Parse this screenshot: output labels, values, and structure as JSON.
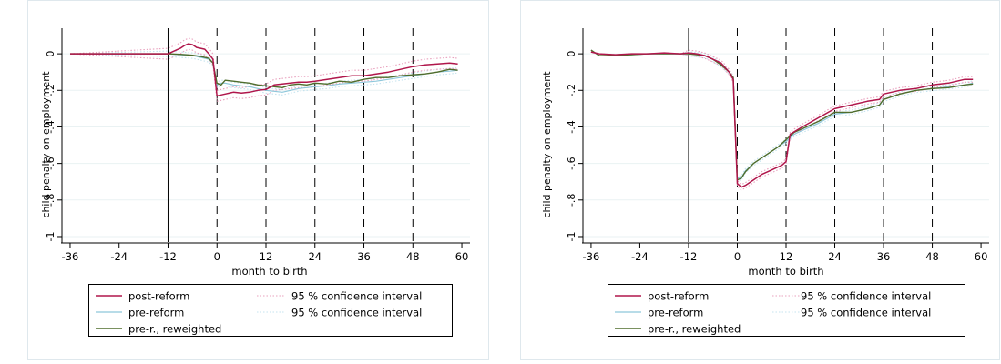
{
  "chart_data": [
    {
      "type": "line",
      "ylabel": "child penalty on employment",
      "xlabel": "month to birth",
      "xlim": [
        -38,
        62
      ],
      "ylim": [
        -1.03,
        0.14
      ],
      "xticks": [
        -36,
        -24,
        -12,
        0,
        12,
        24,
        36,
        48,
        60
      ],
      "xtick_labels": [
        "-36",
        "-24",
        "-12",
        "0",
        "12",
        "24",
        "36",
        "48",
        "60"
      ],
      "yticks": [
        0,
        -0.2,
        -0.4,
        -0.6,
        -0.8,
        -1
      ],
      "ytick_labels": [
        "0",
        "-.2",
        "-.4",
        "-.6",
        "-.8",
        "-1"
      ],
      "grid": true,
      "vlines_solid": [
        -12
      ],
      "vlines_dashed": [
        0,
        12,
        24,
        36,
        48
      ],
      "legend_position": "bottom",
      "legend": {
        "post_reform": "post-reform",
        "pre_reform": "pre-reform",
        "pre_reweighted": "pre-r., reweighted",
        "ci_post": "95 % confidence interval",
        "ci_pre": "95 % confidence interval"
      },
      "colors": {
        "post_reform": "#b0164b",
        "pre_reform": "#8ec7db",
        "pre_reweighted": "#4f6d2c",
        "ci_post": "#e8a0bd",
        "ci_pre": "#c4e3ef"
      },
      "series": [
        {
          "key": "post_reform",
          "x": [
            -36,
            -12,
            -11,
            -10,
            -9,
            -8,
            -7,
            -6,
            -5,
            -4,
            -3,
            -2,
            -1,
            0,
            1,
            2,
            4,
            6,
            8,
            10,
            12,
            14,
            16,
            18,
            20,
            22,
            24,
            27,
            30,
            33,
            36,
            39,
            42,
            45,
            48,
            51,
            54,
            57,
            59
          ],
          "y": [
            0,
            0,
            0.01,
            0.02,
            0.03,
            0.045,
            0.055,
            0.05,
            0.035,
            0.03,
            0.025,
            0.0,
            -0.03,
            -0.23,
            -0.225,
            -0.22,
            -0.21,
            -0.215,
            -0.21,
            -0.2,
            -0.195,
            -0.17,
            -0.165,
            -0.16,
            -0.155,
            -0.155,
            -0.15,
            -0.14,
            -0.13,
            -0.12,
            -0.12,
            -0.11,
            -0.1,
            -0.085,
            -0.07,
            -0.06,
            -0.055,
            -0.05,
            -0.055
          ]
        },
        {
          "key": "pre_reform",
          "x": [
            -36,
            -12,
            -9,
            -6,
            -4,
            -2,
            -1,
            0,
            1,
            2,
            4,
            6,
            8,
            10,
            12,
            14,
            16,
            18,
            20,
            22,
            24,
            27,
            30,
            33,
            36,
            39,
            42,
            45,
            48,
            51,
            54,
            57,
            59
          ],
          "y": [
            0,
            0,
            -0.005,
            -0.01,
            -0.02,
            -0.03,
            -0.05,
            -0.17,
            -0.16,
            -0.16,
            -0.17,
            -0.175,
            -0.18,
            -0.19,
            -0.2,
            -0.205,
            -0.21,
            -0.2,
            -0.19,
            -0.185,
            -0.18,
            -0.175,
            -0.165,
            -0.16,
            -0.155,
            -0.15,
            -0.14,
            -0.13,
            -0.12,
            -0.11,
            -0.1,
            -0.095,
            -0.09
          ]
        },
        {
          "key": "pre_reweighted",
          "x": [
            -36,
            -12,
            -9,
            -6,
            -4,
            -2,
            -1,
            0,
            1,
            2,
            4,
            6,
            8,
            10,
            12,
            14,
            16,
            18,
            20,
            22,
            24,
            27,
            30,
            33,
            36,
            39,
            42,
            45,
            48,
            51,
            54,
            57,
            59
          ],
          "y": [
            0,
            0,
            -0.003,
            -0.008,
            -0.015,
            -0.025,
            -0.05,
            -0.16,
            -0.17,
            -0.145,
            -0.15,
            -0.155,
            -0.16,
            -0.17,
            -0.175,
            -0.18,
            -0.185,
            -0.17,
            -0.165,
            -0.17,
            -0.16,
            -0.165,
            -0.15,
            -0.155,
            -0.14,
            -0.13,
            -0.13,
            -0.12,
            -0.115,
            -0.11,
            -0.1,
            -0.085,
            -0.09
          ]
        }
      ],
      "ci": {
        "post_halfwidth": 0.03,
        "pre_halfwidth": 0.015
      }
    },
    {
      "type": "line",
      "ylabel": "child penalty on employment",
      "xlabel": "month to birth",
      "xlim": [
        -38,
        62
      ],
      "ylim": [
        -1.03,
        0.14
      ],
      "xticks": [
        -36,
        -24,
        -12,
        0,
        12,
        24,
        36,
        48,
        60
      ],
      "xtick_labels": [
        "-36",
        "-24",
        "-12",
        "0",
        "12",
        "24",
        "36",
        "48",
        "60"
      ],
      "yticks": [
        0,
        -0.2,
        -0.4,
        -0.6,
        -0.8,
        -1
      ],
      "ytick_labels": [
        "0",
        "-.2",
        "-.4",
        "-.6",
        "-.8",
        "-1"
      ],
      "grid": true,
      "vlines_solid": [
        -12
      ],
      "vlines_dashed": [
        0,
        12,
        24,
        36,
        48
      ],
      "legend_position": "bottom",
      "legend": {
        "post_reform": "post-reform",
        "pre_reform": "pre-reform",
        "pre_reweighted": "pre-r., reweighted",
        "ci_post": "95 % confidence interval",
        "ci_pre": "95 % confidence interval"
      },
      "colors": {
        "post_reform": "#b0164b",
        "pre_reform": "#8ec7db",
        "pre_reweighted": "#4f6d2c",
        "ci_post": "#e8a0bd",
        "ci_pre": "#c4e3ef"
      },
      "series": [
        {
          "key": "post_reform",
          "x": [
            -36,
            -34,
            -30,
            -26,
            -22,
            -18,
            -14,
            -12,
            -10,
            -8,
            -6,
            -4,
            -2,
            -1,
            0,
            1,
            2,
            4,
            6,
            8,
            10,
            11,
            12,
            13,
            16,
            20,
            24,
            28,
            32,
            35,
            36,
            40,
            44,
            48,
            52,
            56,
            58
          ],
          "y": [
            0.01,
            0.0,
            -0.005,
            0.0,
            0.0,
            0.005,
            0.0,
            0.005,
            0.0,
            -0.01,
            -0.03,
            -0.05,
            -0.1,
            -0.14,
            -0.71,
            -0.73,
            -0.72,
            -0.69,
            -0.66,
            -0.64,
            -0.62,
            -0.61,
            -0.59,
            -0.44,
            -0.4,
            -0.35,
            -0.3,
            -0.28,
            -0.26,
            -0.25,
            -0.22,
            -0.2,
            -0.19,
            -0.17,
            -0.16,
            -0.14,
            -0.14
          ]
        },
        {
          "key": "pre_reform",
          "x": [
            -36,
            -34,
            -30,
            -26,
            -22,
            -18,
            -14,
            -12,
            -10,
            -8,
            -6,
            -4,
            -2,
            -1,
            0,
            1,
            2,
            4,
            6,
            8,
            10,
            12,
            14,
            16,
            20,
            24,
            28,
            32,
            35,
            36,
            40,
            44,
            48,
            52,
            56,
            58
          ],
          "y": [
            0.02,
            -0.01,
            -0.01,
            -0.005,
            0.0,
            0.0,
            0.0,
            0.0,
            -0.005,
            -0.01,
            -0.03,
            -0.06,
            -0.1,
            -0.13,
            -0.68,
            -0.68,
            -0.64,
            -0.6,
            -0.57,
            -0.54,
            -0.51,
            -0.48,
            -0.44,
            -0.42,
            -0.38,
            -0.33,
            -0.32,
            -0.3,
            -0.28,
            -0.25,
            -0.22,
            -0.2,
            -0.19,
            -0.18,
            -0.17,
            -0.16
          ]
        },
        {
          "key": "pre_reweighted",
          "x": [
            -36,
            -34,
            -30,
            -26,
            -22,
            -18,
            -14,
            -12,
            -10,
            -8,
            -6,
            -4,
            -2,
            -1,
            0,
            1,
            2,
            4,
            6,
            8,
            10,
            12,
            14,
            16,
            20,
            24,
            28,
            32,
            35,
            36,
            40,
            44,
            48,
            52,
            56,
            58
          ],
          "y": [
            0.02,
            -0.01,
            -0.01,
            -0.005,
            0.0,
            0.0,
            0.0,
            0.0,
            -0.005,
            -0.01,
            -0.03,
            -0.06,
            -0.1,
            -0.13,
            -0.69,
            -0.68,
            -0.645,
            -0.6,
            -0.57,
            -0.54,
            -0.51,
            -0.47,
            -0.43,
            -0.41,
            -0.37,
            -0.32,
            -0.32,
            -0.3,
            -0.28,
            -0.25,
            -0.22,
            -0.2,
            -0.19,
            -0.185,
            -0.17,
            -0.165
          ]
        }
      ],
      "ci": {
        "post_halfwidth": 0.015,
        "pre_halfwidth": 0.012
      }
    }
  ]
}
